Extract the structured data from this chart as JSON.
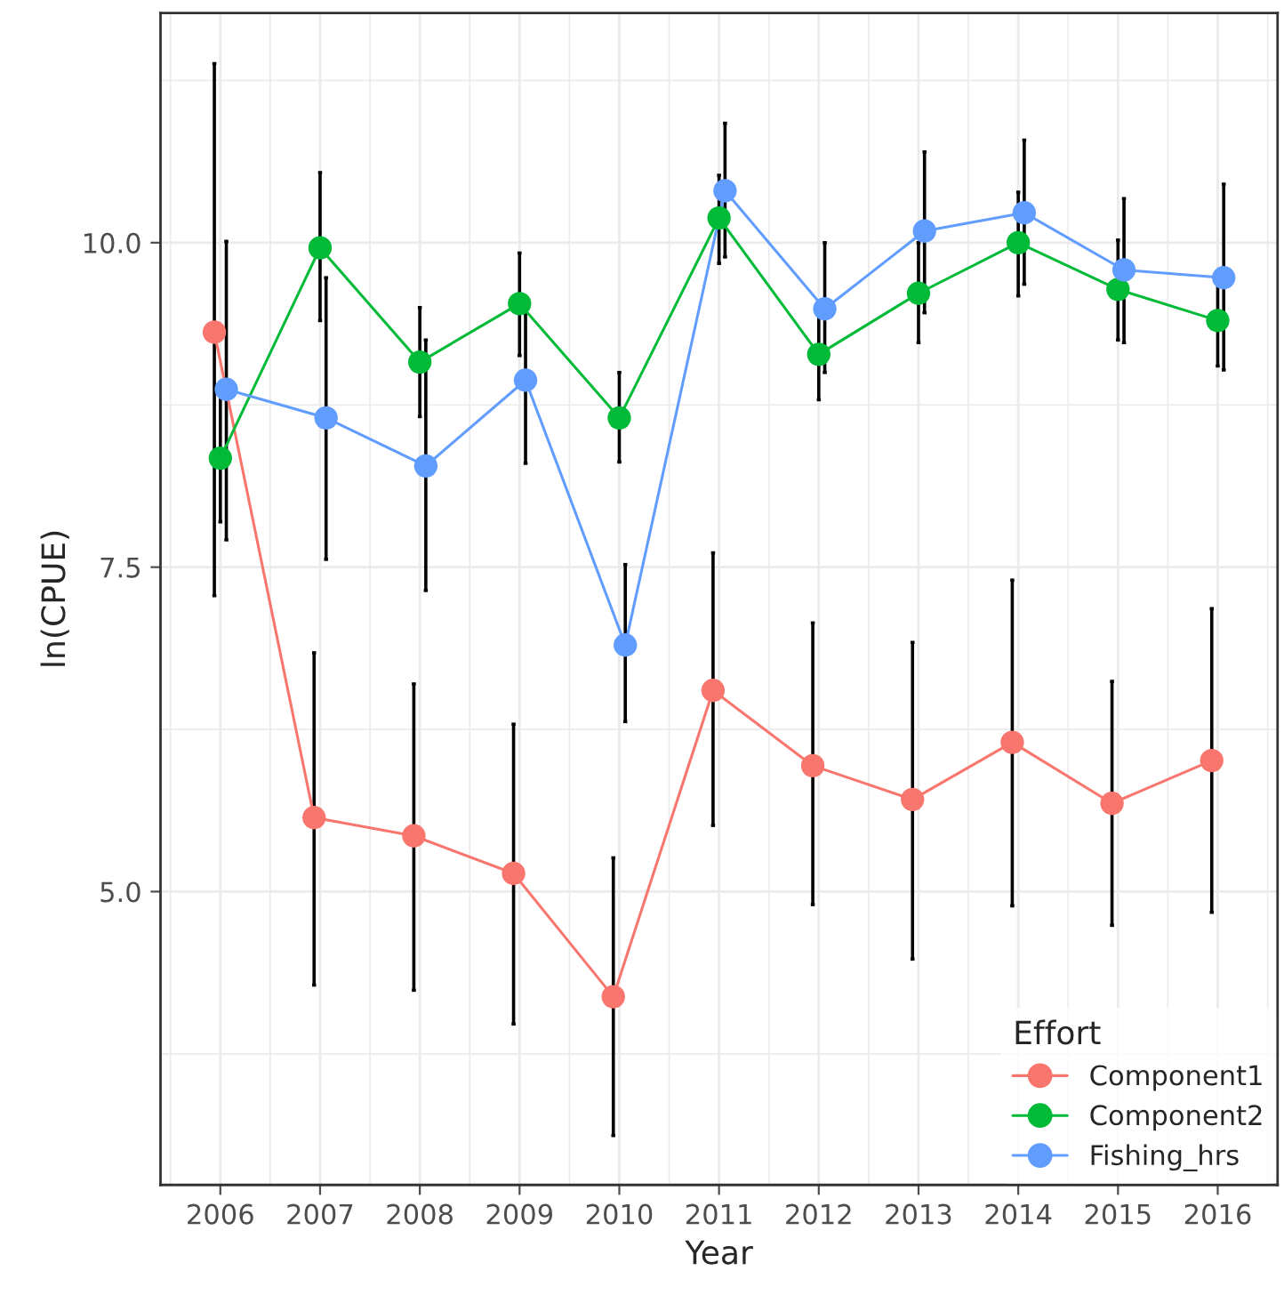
{
  "chart_data": {
    "type": "line",
    "xlabel": "Year",
    "ylabel": "ln(CPUE)",
    "legend_title": "Effort",
    "legend": "bottom right",
    "grid": true,
    "marker": "circle",
    "line_style": "solid",
    "categories": [
      "2006",
      "2007",
      "2008",
      "2009",
      "2010",
      "2011",
      "2012",
      "2013",
      "2014",
      "2015",
      "2016"
    ],
    "ylim": [
      2.74,
      11.77
    ],
    "yticks": [
      {
        "value": 5,
        "label": "5.0"
      },
      {
        "value": 7.5,
        "label": "7.5"
      },
      {
        "value": 10,
        "label": "10.0"
      }
    ],
    "series": [
      {
        "name": "Component1",
        "color": "#f8766d",
        "values": [
          9.31,
          5.57,
          5.43,
          5.14,
          4.19,
          6.55,
          5.97,
          5.71,
          6.15,
          5.68,
          6.01
        ],
        "errors": [
          [
            7.28,
            11.38
          ],
          [
            4.28,
            6.84
          ],
          [
            4.24,
            6.6
          ],
          [
            3.98,
            6.29
          ],
          [
            3.12,
            5.26
          ],
          [
            5.51,
            7.61
          ],
          [
            4.9,
            7.07
          ],
          [
            4.48,
            6.92
          ],
          [
            4.89,
            7.4
          ],
          [
            4.74,
            6.62
          ],
          [
            4.84,
            7.18
          ]
        ]
      },
      {
        "name": "Component2",
        "color": "#00ba38",
        "values": [
          8.34,
          9.96,
          9.08,
          9.53,
          8.65,
          10.19,
          9.14,
          9.61,
          10.0,
          9.64,
          9.4
        ],
        "errors": [
          [
            7.85,
            8.83
          ],
          [
            9.4,
            10.54
          ],
          [
            8.66,
            9.5
          ],
          [
            9.13,
            9.92
          ],
          [
            8.31,
            9.0
          ],
          [
            9.84,
            10.52
          ],
          [
            8.79,
            9.49
          ],
          [
            9.23,
            10.0
          ],
          [
            9.59,
            10.39
          ],
          [
            9.25,
            10.02
          ],
          [
            9.05,
            9.75
          ]
        ]
      },
      {
        "name": "Fishing_hrs",
        "color": "#619cff",
        "values": [
          8.87,
          8.65,
          8.28,
          8.94,
          6.9,
          10.4,
          9.49,
          10.09,
          10.23,
          9.79,
          9.73
        ],
        "errors": [
          [
            7.71,
            10.01
          ],
          [
            7.56,
            9.73
          ],
          [
            7.32,
            9.25
          ],
          [
            8.3,
            9.46
          ],
          [
            6.31,
            7.52
          ],
          [
            9.89,
            10.92
          ],
          [
            9.0,
            10.0
          ],
          [
            9.46,
            10.7
          ],
          [
            9.68,
            10.79
          ],
          [
            9.23,
            10.34
          ],
          [
            9.02,
            10.45
          ]
        ]
      }
    ]
  }
}
